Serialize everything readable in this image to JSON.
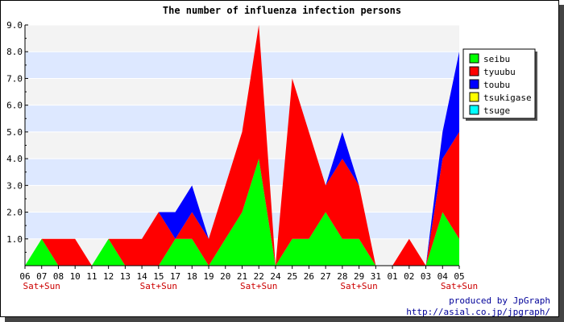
{
  "chart_data": {
    "type": "area",
    "stacked": true,
    "title": "The number of influenza infection persons",
    "xlabel": "",
    "ylabel": "",
    "ylim": [
      0,
      9
    ],
    "y_ticks": [
      "",
      "1.0",
      "2.0",
      "3.0",
      "4.0",
      "5.0",
      "6.0",
      "7.0",
      "8.0",
      "9.0"
    ],
    "categories": [
      "06",
      "07",
      "08",
      "10",
      "11",
      "12",
      "13",
      "14",
      "15",
      "17",
      "18",
      "19",
      "20",
      "21",
      "22",
      "24",
      "25",
      "26",
      "27",
      "28",
      "29",
      "31",
      "01",
      "02",
      "03",
      "04",
      "05"
    ],
    "weekend_marker": "Sat+Sun",
    "weekend_indices": [
      1,
      8,
      14,
      20,
      26
    ],
    "legend_position": "right",
    "grid": true,
    "series": [
      {
        "name": "seibu",
        "color": "#00ff00",
        "values": [
          0,
          1,
          0,
          0,
          0,
          1,
          0,
          0,
          0,
          1,
          1,
          0,
          1,
          2,
          4,
          0,
          1,
          1,
          2,
          1,
          1,
          0,
          0,
          0,
          0,
          2,
          1
        ]
      },
      {
        "name": "tyuubu",
        "color": "#ff0000",
        "values": [
          0,
          0,
          1,
          1,
          0,
          0,
          1,
          1,
          2,
          0,
          1,
          1,
          2,
          3,
          5,
          0,
          6,
          4,
          1,
          3,
          2,
          0,
          0,
          1,
          0,
          2,
          4
        ]
      },
      {
        "name": "toubu",
        "color": "#0000ff",
        "values": [
          0,
          0,
          0,
          0,
          0,
          0,
          0,
          0,
          0,
          1,
          1,
          0,
          0,
          0,
          0,
          0,
          0,
          0,
          0,
          1,
          0,
          0,
          0,
          0,
          0,
          1,
          3
        ]
      },
      {
        "name": "tsukigase",
        "color": "#ffff00",
        "values": [
          0,
          0,
          0,
          0,
          0,
          0,
          0,
          0,
          0,
          0,
          0,
          0,
          0,
          0,
          0,
          0,
          0,
          0,
          0,
          0,
          0,
          0,
          0,
          0,
          0,
          0,
          0
        ]
      },
      {
        "name": "tsuge",
        "color": "#00ffff",
        "values": [
          0,
          0,
          0,
          0,
          0,
          0,
          0,
          0,
          0,
          0,
          0,
          0,
          0,
          0,
          0,
          0,
          0,
          0,
          0,
          0,
          0,
          0,
          0,
          0,
          0,
          0,
          0
        ]
      }
    ]
  },
  "credit": {
    "line1": "produced by JpGraph",
    "line2": "http://asial.co.jp/jpgraph/"
  }
}
